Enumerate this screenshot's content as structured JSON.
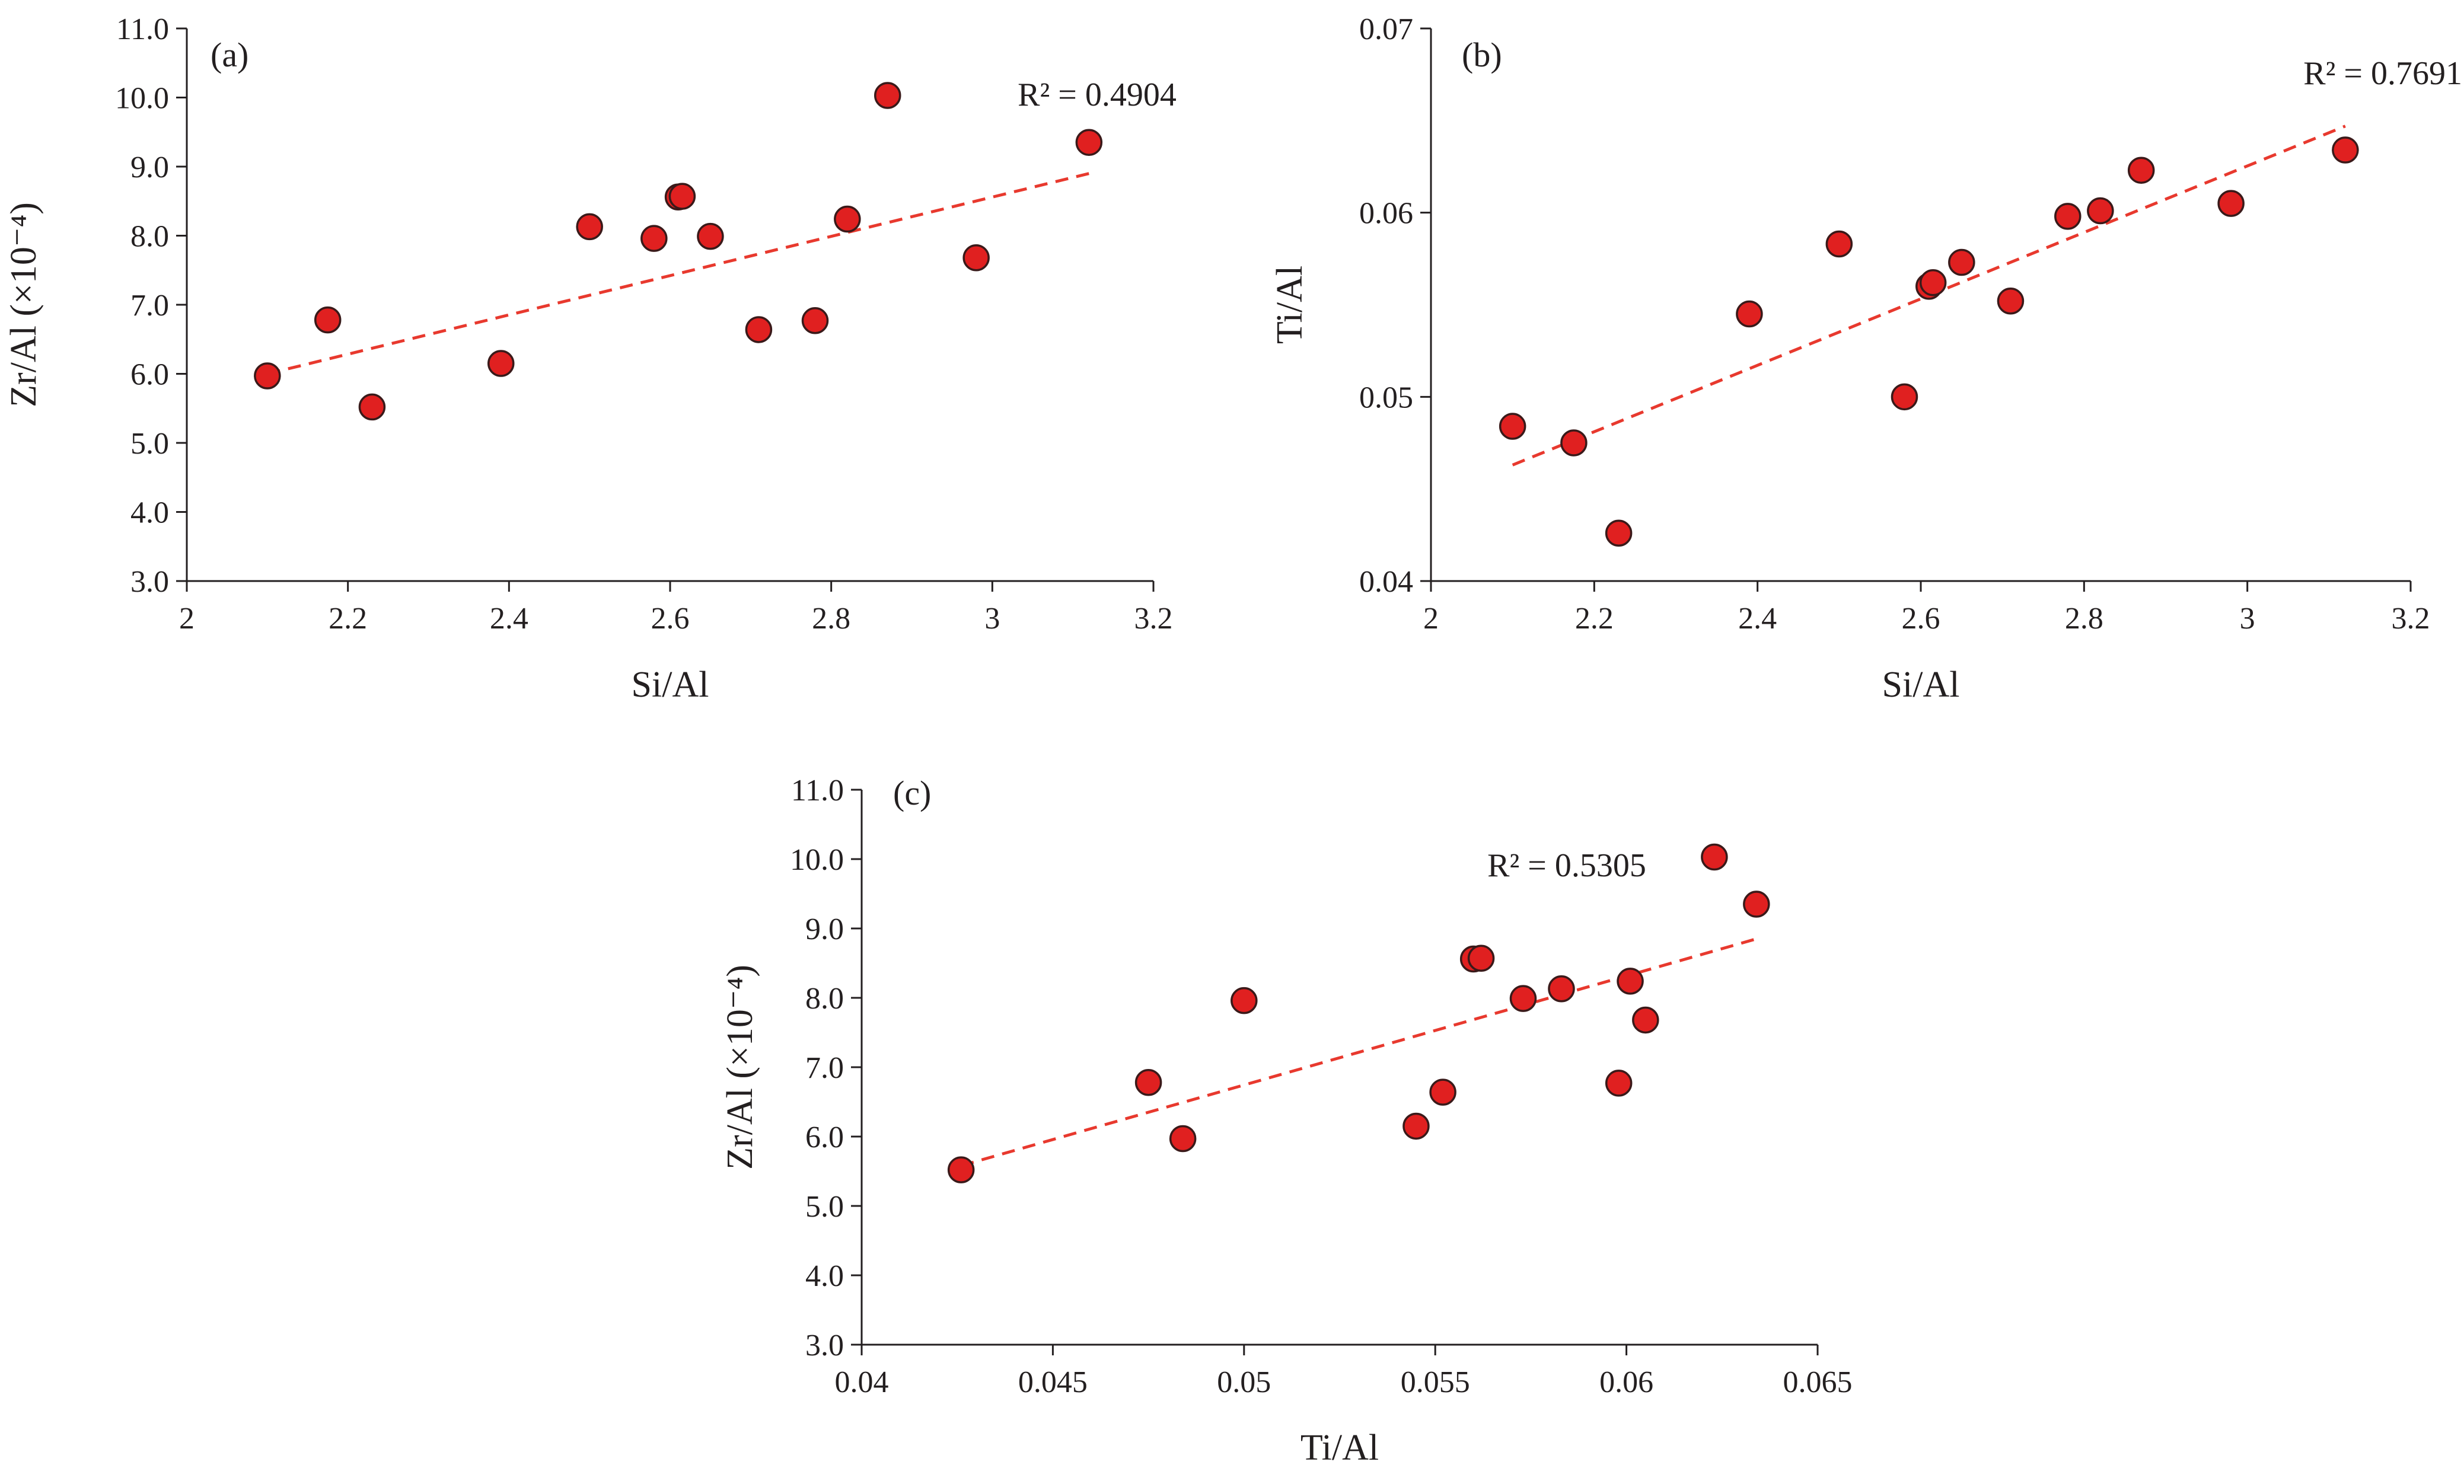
{
  "chart_data": [
    {
      "type": "scatter",
      "panel_label": "(a)",
      "xlabel": "Si/Al",
      "ylabel": "Zr/Al (×10⁻⁴)",
      "xlim": [
        2,
        3.2
      ],
      "ylim": [
        3.0,
        11.0
      ],
      "x_ticks": [
        "2",
        "2.2",
        "2.4",
        "2.6",
        "2.8",
        "3",
        "3.2"
      ],
      "y_ticks": [
        "3.0",
        "4.0",
        "5.0",
        "6.0",
        "7.0",
        "8.0",
        "9.0",
        "10.0",
        "11.0"
      ],
      "points": [
        {
          "x": 2.1,
          "y": 5.97
        },
        {
          "x": 2.175,
          "y": 6.78
        },
        {
          "x": 2.23,
          "y": 5.52
        },
        {
          "x": 2.39,
          "y": 6.15
        },
        {
          "x": 2.5,
          "y": 8.13
        },
        {
          "x": 2.58,
          "y": 7.96
        },
        {
          "x": 2.61,
          "y": 8.56
        },
        {
          "x": 2.615,
          "y": 8.57
        },
        {
          "x": 2.65,
          "y": 7.99
        },
        {
          "x": 2.71,
          "y": 6.64
        },
        {
          "x": 2.78,
          "y": 6.77
        },
        {
          "x": 2.82,
          "y": 8.24
        },
        {
          "x": 2.87,
          "y": 10.03
        },
        {
          "x": 2.98,
          "y": 7.68
        },
        {
          "x": 3.12,
          "y": 9.35
        }
      ],
      "trendline": {
        "x": [
          2.1,
          3.12
        ],
        "y": [
          6.0,
          8.9
        ]
      },
      "annotation": "R² = 0.4904"
    },
    {
      "type": "scatter",
      "panel_label": "(b)",
      "xlabel": "Si/Al",
      "ylabel": "Ti/Al",
      "xlim": [
        2,
        3.2
      ],
      "ylim": [
        0.04,
        0.07
      ],
      "x_ticks": [
        "2",
        "2.2",
        "2.4",
        "2.6",
        "2.8",
        "3",
        "3.2"
      ],
      "y_ticks": [
        "0.04",
        "0.05",
        "0.06",
        "0.07"
      ],
      "points": [
        {
          "x": 2.1,
          "y": 0.0484
        },
        {
          "x": 2.175,
          "y": 0.0475
        },
        {
          "x": 2.23,
          "y": 0.0426
        },
        {
          "x": 2.39,
          "y": 0.0545
        },
        {
          "x": 2.5,
          "y": 0.0583
        },
        {
          "x": 2.58,
          "y": 0.05
        },
        {
          "x": 2.61,
          "y": 0.056
        },
        {
          "x": 2.615,
          "y": 0.0562
        },
        {
          "x": 2.65,
          "y": 0.0573
        },
        {
          "x": 2.71,
          "y": 0.0552
        },
        {
          "x": 2.78,
          "y": 0.0598
        },
        {
          "x": 2.82,
          "y": 0.0601
        },
        {
          "x": 2.87,
          "y": 0.0623
        },
        {
          "x": 2.98,
          "y": 0.0605
        },
        {
          "x": 3.12,
          "y": 0.0634
        }
      ],
      "trendline": {
        "x": [
          2.1,
          3.12
        ],
        "y": [
          0.0463,
          0.0647
        ]
      },
      "annotation": "R² = 0.7691"
    },
    {
      "type": "scatter",
      "panel_label": "(c)",
      "xlabel": "Ti/Al",
      "ylabel": "Zr/Al (×10⁻⁴)",
      "xlim": [
        0.04,
        0.065
      ],
      "ylim": [
        3.0,
        11.0
      ],
      "x_ticks": [
        "0.04",
        "0.045",
        "0.05",
        "0.055",
        "0.06",
        "0.065"
      ],
      "y_ticks": [
        "3.0",
        "4.0",
        "5.0",
        "6.0",
        "7.0",
        "8.0",
        "9.0",
        "10.0",
        "11.0"
      ],
      "points": [
        {
          "x": 0.0426,
          "y": 5.52
        },
        {
          "x": 0.0475,
          "y": 6.78
        },
        {
          "x": 0.0484,
          "y": 5.97
        },
        {
          "x": 0.05,
          "y": 7.96
        },
        {
          "x": 0.0545,
          "y": 6.15
        },
        {
          "x": 0.0552,
          "y": 6.64
        },
        {
          "x": 0.056,
          "y": 8.56
        },
        {
          "x": 0.0562,
          "y": 8.57
        },
        {
          "x": 0.0573,
          "y": 7.99
        },
        {
          "x": 0.0583,
          "y": 8.13
        },
        {
          "x": 0.0598,
          "y": 6.77
        },
        {
          "x": 0.0601,
          "y": 8.24
        },
        {
          "x": 0.0605,
          "y": 7.68
        },
        {
          "x": 0.0623,
          "y": 10.03
        },
        {
          "x": 0.0634,
          "y": 9.35
        }
      ],
      "trendline": {
        "x": [
          0.0426,
          0.0634
        ],
        "y": [
          5.58,
          8.85
        ]
      },
      "annotation": "R² = 0.5305"
    }
  ]
}
